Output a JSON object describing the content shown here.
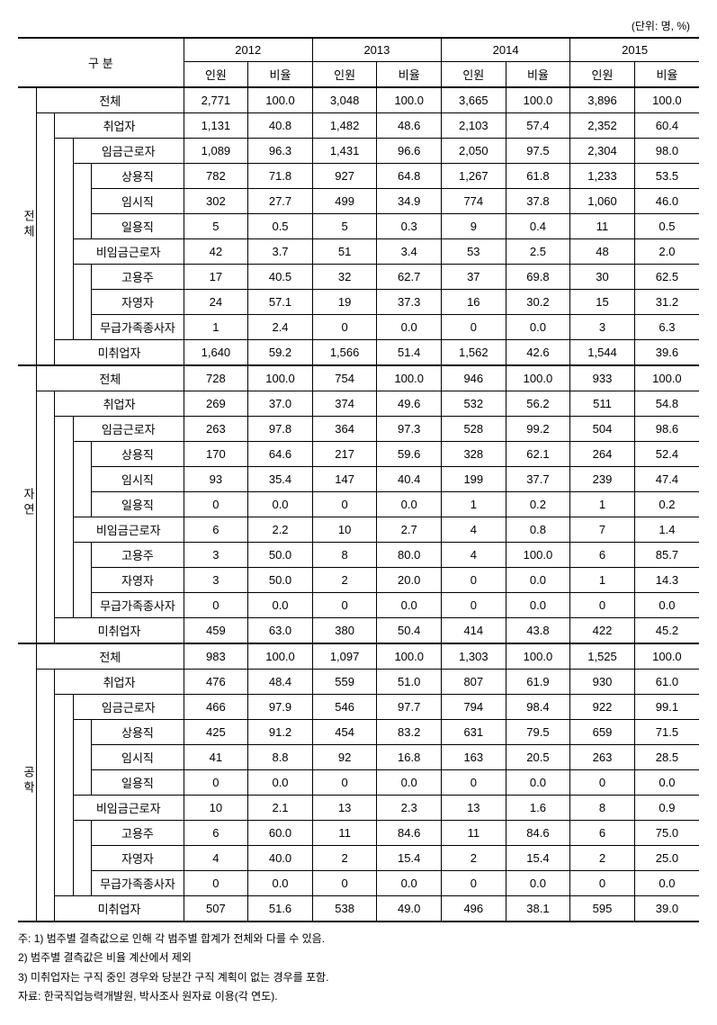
{
  "unit_label": "(단위: 명, %)",
  "header": {
    "category": "구 분",
    "years": [
      "2012",
      "2013",
      "2014",
      "2015"
    ],
    "sub": [
      "인원",
      "비율"
    ]
  },
  "sections": [
    {
      "name": "전체",
      "rows": [
        {
          "label": "전체",
          "indent": 0,
          "v": [
            "2,771",
            "100.0",
            "3,048",
            "100.0",
            "3,665",
            "100.0",
            "3,896",
            "100.0"
          ]
        },
        {
          "label": "취업자",
          "indent": 1,
          "v": [
            "1,131",
            "40.8",
            "1,482",
            "48.6",
            "2,103",
            "57.4",
            "2,352",
            "60.4"
          ]
        },
        {
          "label": "임금근로자",
          "indent": 2,
          "v": [
            "1,089",
            "96.3",
            "1,431",
            "96.6",
            "2,050",
            "97.5",
            "2,304",
            "98.0"
          ]
        },
        {
          "label": "상용직",
          "indent": 3,
          "v": [
            "782",
            "71.8",
            "927",
            "64.8",
            "1,267",
            "61.8",
            "1,233",
            "53.5"
          ]
        },
        {
          "label": "임시직",
          "indent": 3,
          "v": [
            "302",
            "27.7",
            "499",
            "34.9",
            "774",
            "37.8",
            "1,060",
            "46.0"
          ]
        },
        {
          "label": "일용직",
          "indent": 3,
          "v": [
            "5",
            "0.5",
            "5",
            "0.3",
            "9",
            "0.4",
            "11",
            "0.5"
          ]
        },
        {
          "label": "비임금근로자",
          "indent": 2,
          "v": [
            "42",
            "3.7",
            "51",
            "3.4",
            "53",
            "2.5",
            "48",
            "2.0"
          ]
        },
        {
          "label": "고용주",
          "indent": 3,
          "v": [
            "17",
            "40.5",
            "32",
            "62.7",
            "37",
            "69.8",
            "30",
            "62.5"
          ]
        },
        {
          "label": "자영자",
          "indent": 3,
          "v": [
            "24",
            "57.1",
            "19",
            "37.3",
            "16",
            "30.2",
            "15",
            "31.2"
          ]
        },
        {
          "label": "무급가족종사자",
          "indent": 3,
          "v": [
            "1",
            "2.4",
            "0",
            "0.0",
            "0",
            "0.0",
            "3",
            "6.3"
          ]
        },
        {
          "label": "미취업자",
          "indent": 1,
          "v": [
            "1,640",
            "59.2",
            "1,566",
            "51.4",
            "1,562",
            "42.6",
            "1,544",
            "39.6"
          ]
        }
      ]
    },
    {
      "name": "자연",
      "rows": [
        {
          "label": "전체",
          "indent": 0,
          "v": [
            "728",
            "100.0",
            "754",
            "100.0",
            "946",
            "100.0",
            "933",
            "100.0"
          ]
        },
        {
          "label": "취업자",
          "indent": 1,
          "v": [
            "269",
            "37.0",
            "374",
            "49.6",
            "532",
            "56.2",
            "511",
            "54.8"
          ]
        },
        {
          "label": "임금근로자",
          "indent": 2,
          "v": [
            "263",
            "97.8",
            "364",
            "97.3",
            "528",
            "99.2",
            "504",
            "98.6"
          ]
        },
        {
          "label": "상용직",
          "indent": 3,
          "v": [
            "170",
            "64.6",
            "217",
            "59.6",
            "328",
            "62.1",
            "264",
            "52.4"
          ]
        },
        {
          "label": "임시직",
          "indent": 3,
          "v": [
            "93",
            "35.4",
            "147",
            "40.4",
            "199",
            "37.7",
            "239",
            "47.4"
          ]
        },
        {
          "label": "일용직",
          "indent": 3,
          "v": [
            "0",
            "0.0",
            "0",
            "0.0",
            "1",
            "0.2",
            "1",
            "0.2"
          ]
        },
        {
          "label": "비임금근로자",
          "indent": 2,
          "v": [
            "6",
            "2.2",
            "10",
            "2.7",
            "4",
            "0.8",
            "7",
            "1.4"
          ]
        },
        {
          "label": "고용주",
          "indent": 3,
          "v": [
            "3",
            "50.0",
            "8",
            "80.0",
            "4",
            "100.0",
            "6",
            "85.7"
          ]
        },
        {
          "label": "자영자",
          "indent": 3,
          "v": [
            "3",
            "50.0",
            "2",
            "20.0",
            "0",
            "0.0",
            "1",
            "14.3"
          ]
        },
        {
          "label": "무급가족종사자",
          "indent": 3,
          "v": [
            "0",
            "0.0",
            "0",
            "0.0",
            "0",
            "0.0",
            "0",
            "0.0"
          ]
        },
        {
          "label": "미취업자",
          "indent": 1,
          "v": [
            "459",
            "63.0",
            "380",
            "50.4",
            "414",
            "43.8",
            "422",
            "45.2"
          ]
        }
      ]
    },
    {
      "name": "공학",
      "rows": [
        {
          "label": "전체",
          "indent": 0,
          "v": [
            "983",
            "100.0",
            "1,097",
            "100.0",
            "1,303",
            "100.0",
            "1,525",
            "100.0"
          ]
        },
        {
          "label": "취업자",
          "indent": 1,
          "v": [
            "476",
            "48.4",
            "559",
            "51.0",
            "807",
            "61.9",
            "930",
            "61.0"
          ]
        },
        {
          "label": "임금근로자",
          "indent": 2,
          "v": [
            "466",
            "97.9",
            "546",
            "97.7",
            "794",
            "98.4",
            "922",
            "99.1"
          ]
        },
        {
          "label": "상용직",
          "indent": 3,
          "v": [
            "425",
            "91.2",
            "454",
            "83.2",
            "631",
            "79.5",
            "659",
            "71.5"
          ]
        },
        {
          "label": "임시직",
          "indent": 3,
          "v": [
            "41",
            "8.8",
            "92",
            "16.8",
            "163",
            "20.5",
            "263",
            "28.5"
          ]
        },
        {
          "label": "일용직",
          "indent": 3,
          "v": [
            "0",
            "0.0",
            "0",
            "0.0",
            "0",
            "0.0",
            "0",
            "0.0"
          ]
        },
        {
          "label": "비임금근로자",
          "indent": 2,
          "v": [
            "10",
            "2.1",
            "13",
            "2.3",
            "13",
            "1.6",
            "8",
            "0.9"
          ]
        },
        {
          "label": "고용주",
          "indent": 3,
          "v": [
            "6",
            "60.0",
            "11",
            "84.6",
            "11",
            "84.6",
            "6",
            "75.0"
          ]
        },
        {
          "label": "자영자",
          "indent": 3,
          "v": [
            "4",
            "40.0",
            "2",
            "15.4",
            "2",
            "15.4",
            "2",
            "25.0"
          ]
        },
        {
          "label": "무급가족종사자",
          "indent": 3,
          "v": [
            "0",
            "0.0",
            "0",
            "0.0",
            "0",
            "0.0",
            "0",
            "0.0"
          ]
        },
        {
          "label": "미취업자",
          "indent": 1,
          "v": [
            "507",
            "51.6",
            "538",
            "49.0",
            "496",
            "38.1",
            "595",
            "39.0"
          ]
        }
      ]
    }
  ],
  "notes": [
    "주: 1) 범주별 결측값으로 인해 각 범주별 합계가 전체와 다를 수 있음.",
    "    2) 범주별 결측값은 비율 계산에서 제외",
    "    3) 미취업자는 구직 중인 경우와 당분간 구직 계획이 없는 경우를 포함.",
    "자료: 한국직업능력개발원, 박사조사 원자료 이용(각 연도)."
  ]
}
